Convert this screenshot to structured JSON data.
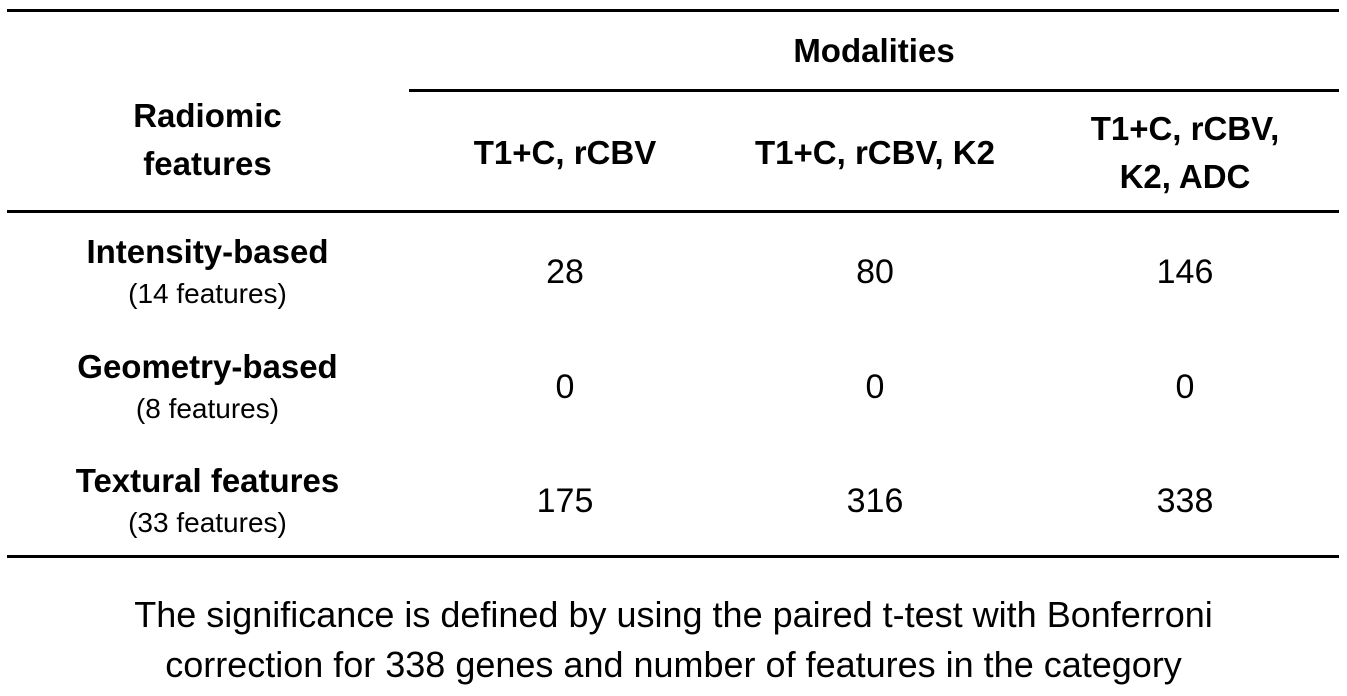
{
  "table": {
    "row_header_label": "Radiomic features",
    "group_header_label": "Modalities",
    "columns": [
      "T1+C, rCBV",
      "T1+C, rCBV, K2",
      "T1+C, rCBV, K2, ADC"
    ],
    "rows": [
      {
        "label": "Intensity-based",
        "sublabel": "(14 features)",
        "values": [
          "28",
          "80",
          "146"
        ]
      },
      {
        "label": "Geometry-based",
        "sublabel": "(8 features)",
        "values": [
          "0",
          "0",
          "0"
        ]
      },
      {
        "label": "Textural features",
        "sublabel": "(33 features)",
        "values": [
          "175",
          "316",
          "338"
        ]
      }
    ]
  },
  "caption": "The significance is defined by using the paired t-test with Bonferroni correction for 338 genes and number of features in the category"
}
